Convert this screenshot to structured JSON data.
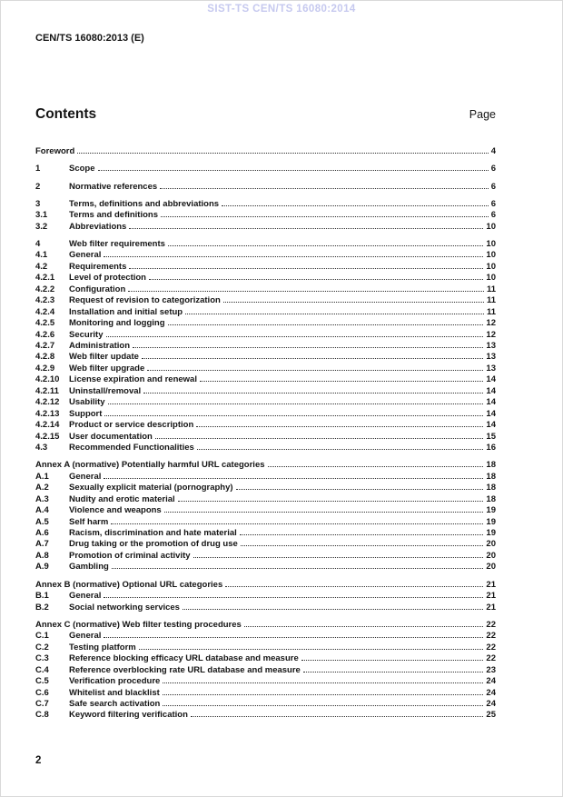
{
  "page": {
    "watermark": "SIST-TS CEN/TS 16080:2014",
    "doc_id": "CEN/TS 16080:2013 (E)",
    "page_number": "2"
  },
  "colors": {
    "watermark": "#c6c9ef",
    "text": "#141414"
  },
  "contents": {
    "title": "Contents",
    "page_label": "Page",
    "items": [
      {
        "num": "",
        "title": "Foreword",
        "page": "4",
        "level": 1
      },
      {
        "num": "1",
        "title": "Scope",
        "page": "6",
        "level": 1
      },
      {
        "num": "2",
        "title": "Normative references",
        "page": "6",
        "level": 1
      },
      {
        "num": "3",
        "title": "Terms, definitions and abbreviations",
        "page": "6",
        "level": 1
      },
      {
        "num": "3.1",
        "title": "Terms and definitions",
        "page": "6",
        "level": 2
      },
      {
        "num": "3.2",
        "title": "Abbreviations",
        "page": "10",
        "level": 2
      },
      {
        "num": "4",
        "title": "Web filter requirements",
        "page": "10",
        "level": 1
      },
      {
        "num": "4.1",
        "title": "General",
        "page": "10",
        "level": 2
      },
      {
        "num": "4.2",
        "title": "Requirements",
        "page": "10",
        "level": 2
      },
      {
        "num": "4.2.1",
        "title": "Level of protection",
        "page": "10",
        "level": 2
      },
      {
        "num": "4.2.2",
        "title": "Configuration",
        "page": "11",
        "level": 2
      },
      {
        "num": "4.2.3",
        "title": "Request of revision to categorization",
        "page": "11",
        "level": 2
      },
      {
        "num": "4.2.4",
        "title": "Installation and initial setup",
        "page": "11",
        "level": 2
      },
      {
        "num": "4.2.5",
        "title": "Monitoring and logging",
        "page": "12",
        "level": 2
      },
      {
        "num": "4.2.6",
        "title": "Security",
        "page": "12",
        "level": 2
      },
      {
        "num": "4.2.7",
        "title": "Administration",
        "page": "13",
        "level": 2
      },
      {
        "num": "4.2.8",
        "title": "Web filter update",
        "page": "13",
        "level": 2
      },
      {
        "num": "4.2.9",
        "title": "Web filter upgrade",
        "page": "13",
        "level": 2
      },
      {
        "num": "4.2.10",
        "title": "License expiration and renewal",
        "page": "14",
        "level": 2
      },
      {
        "num": "4.2.11",
        "title": "Uninstall/removal",
        "page": "14",
        "level": 2
      },
      {
        "num": "4.2.12",
        "title": "Usability",
        "page": "14",
        "level": 2
      },
      {
        "num": "4.2.13",
        "title": "Support",
        "page": "14",
        "level": 2
      },
      {
        "num": "4.2.14",
        "title": "Product or service description",
        "page": "14",
        "level": 2
      },
      {
        "num": "4.2.15",
        "title": "User documentation",
        "page": "15",
        "level": 2
      },
      {
        "num": "4.3",
        "title": "Recommended Functionalities",
        "page": "16",
        "level": 2
      },
      {
        "num": "",
        "title": "Annex A (normative) Potentially harmful URL categories",
        "page": "18",
        "level": 1
      },
      {
        "num": "A.1",
        "title": "General",
        "page": "18",
        "level": 2
      },
      {
        "num": "A.2",
        "title": "Sexually explicit material (pornography)",
        "page": "18",
        "level": 2
      },
      {
        "num": "A.3",
        "title": "Nudity and erotic material",
        "page": "18",
        "level": 2
      },
      {
        "num": "A.4",
        "title": "Violence and weapons",
        "page": "19",
        "level": 2
      },
      {
        "num": "A.5",
        "title": "Self harm",
        "page": "19",
        "level": 2
      },
      {
        "num": "A.6",
        "title": "Racism, discrimination and hate material",
        "page": "19",
        "level": 2
      },
      {
        "num": "A.7",
        "title": "Drug taking or the promotion of drug use",
        "page": "20",
        "level": 2
      },
      {
        "num": "A.8",
        "title": "Promotion of criminal activity",
        "page": "20",
        "level": 2
      },
      {
        "num": "A.9",
        "title": "Gambling",
        "page": "20",
        "level": 2
      },
      {
        "num": "",
        "title": "Annex B (normative) Optional URL categories",
        "page": "21",
        "level": 1
      },
      {
        "num": "B.1",
        "title": "General",
        "page": "21",
        "level": 2
      },
      {
        "num": "B.2",
        "title": "Social networking services",
        "page": "21",
        "level": 2
      },
      {
        "num": "",
        "title": "Annex C (normative) Web filter testing procedures",
        "page": "22",
        "level": 1
      },
      {
        "num": "C.1",
        "title": "General",
        "page": "22",
        "level": 2
      },
      {
        "num": "C.2",
        "title": "Testing platform",
        "page": "22",
        "level": 2
      },
      {
        "num": "C.3",
        "title": "Reference blocking efficacy URL database and measure",
        "page": "22",
        "level": 2
      },
      {
        "num": "C.4",
        "title": "Reference overblocking rate URL database and measure",
        "page": "23",
        "level": 2
      },
      {
        "num": "C.5",
        "title": "Verification procedure",
        "page": "24",
        "level": 2
      },
      {
        "num": "C.6",
        "title": "Whitelist and blacklist",
        "page": "24",
        "level": 2
      },
      {
        "num": "C.7",
        "title": "Safe search activation",
        "page": "24",
        "level": 2
      },
      {
        "num": "C.8",
        "title": "Keyword filtering verification",
        "page": "25",
        "level": 2
      }
    ]
  }
}
